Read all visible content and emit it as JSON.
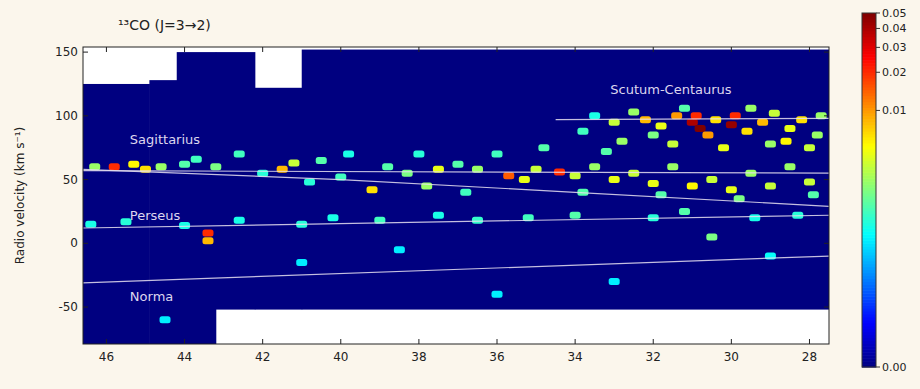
{
  "chart_data": {
    "type": "heatmap",
    "title": "¹³CO (J=3→2)",
    "y_label": "Radio velocity (km s⁻¹)",
    "xlim": [
      46.6,
      27.5
    ],
    "ylim": [
      -79,
      154
    ],
    "xticks": [
      46,
      44,
      42,
      40,
      38,
      36,
      34,
      32,
      30,
      28
    ],
    "yticks": [
      -50,
      0,
      50,
      100,
      150
    ],
    "coverage": [
      {
        "l": [
          46.6,
          44.9
        ],
        "v": [
          -79,
          125
        ]
      },
      {
        "l": [
          44.9,
          44.2
        ],
        "v": [
          -79,
          128
        ]
      },
      {
        "l": [
          44.2,
          43.2
        ],
        "v": [
          -79,
          150
        ]
      },
      {
        "l": [
          43.2,
          42.2
        ],
        "v": [
          -52,
          150
        ]
      },
      {
        "l": [
          42.2,
          41.0
        ],
        "v": [
          -52,
          122
        ]
      },
      {
        "l": [
          41.0,
          27.5
        ],
        "v": [
          -52,
          152
        ]
      }
    ],
    "cells": {
      "l": [
        33.5,
        33.0,
        32.5,
        32.2,
        31.8,
        31.4,
        31.0,
        30.8,
        30.9,
        30.6,
        30.4,
        30.0,
        29.9,
        29.6,
        29.2,
        28.9,
        28.5,
        28.2,
        27.8,
        32.8,
        31.5,
        30.2,
        29.0,
        28.0,
        31.2,
        29.5,
        33.8,
        32.0,
        28.6,
        27.7,
        46.3,
        45.8,
        45.3,
        45.0,
        44.6,
        44.0,
        43.7,
        43.2,
        42.6,
        41.5,
        41.2,
        40.5,
        39.8,
        39.2,
        38.8,
        38.3,
        37.8,
        37.5,
        37.0,
        36.5,
        35.7,
        35.3,
        35.0,
        34.4,
        34.0,
        33.5,
        33.0,
        32.5,
        32.0,
        31.5,
        31.0,
        30.5,
        30.0,
        29.5,
        29.0,
        28.5,
        28.0,
        40.0,
        42.0,
        36.0,
        34.8,
        33.2,
        38.0,
        40.8,
        36.8,
        33.8,
        31.8,
        29.8,
        27.9,
        46.4,
        45.5,
        44.0,
        43.4,
        43.4,
        42.6,
        41.0,
        40.2,
        39.0,
        37.5,
        36.5,
        35.2,
        34.0,
        32.0,
        31.2,
        30.5,
        29.4,
        28.3,
        38.5,
        33.0,
        36.0,
        41.0,
        29.0,
        44.5
      ],
      "v": [
        100,
        95,
        103,
        97,
        92,
        100,
        95,
        90,
        100,
        85,
        97,
        93,
        100,
        88,
        95,
        102,
        90,
        97,
        85,
        80,
        78,
        75,
        78,
        75,
        106,
        106,
        88,
        85,
        80,
        100,
        60,
        60,
        62,
        58,
        60,
        62,
        66,
        60,
        70,
        58,
        63,
        65,
        70,
        42,
        60,
        55,
        45,
        58,
        62,
        58,
        53,
        50,
        58,
        56,
        53,
        60,
        50,
        55,
        47,
        60,
        45,
        50,
        42,
        55,
        45,
        60,
        48,
        52,
        55,
        70,
        75,
        72,
        70,
        48,
        40,
        40,
        38,
        35,
        38,
        15,
        17,
        14,
        8,
        2,
        18,
        15,
        20,
        18,
        22,
        18,
        20,
        22,
        20,
        25,
        5,
        20,
        22,
        -5,
        -30,
        -40,
        -15,
        -10,
        -60
      ],
      "values": [
        0.0005,
        0.003,
        0.002,
        0.008,
        0.004,
        0.01,
        0.04,
        0.05,
        0.02,
        0.01,
        0.006,
        0.045,
        0.02,
        0.006,
        0.008,
        0.003,
        0.004,
        0.006,
        0.002,
        0.002,
        0.003,
        0.004,
        0.002,
        0.003,
        0.001,
        0.002,
        0.0008,
        0.0015,
        0.005,
        0.002,
        0.002,
        0.02,
        0.005,
        0.006,
        0.002,
        0.001,
        0.0008,
        0.0015,
        0.0008,
        0.008,
        0.003,
        0.001,
        0.0005,
        0.006,
        0.001,
        0.0015,
        0.002,
        0.004,
        0.001,
        0.002,
        0.015,
        0.004,
        0.003,
        0.02,
        0.003,
        0.002,
        0.004,
        0.003,
        0.004,
        0.002,
        0.005,
        0.003,
        0.004,
        0.002,
        0.003,
        0.002,
        0.003,
        0.0008,
        0.0006,
        0.0008,
        0.001,
        0.001,
        0.0006,
        0.0006,
        0.0008,
        0.001,
        0.001,
        0.0015,
        0.001,
        0.0005,
        0.0006,
        0.0005,
        0.02,
        0.008,
        0.0005,
        0.0006,
        0.0005,
        0.0008,
        0.0005,
        0.0007,
        0.0008,
        0.001,
        0.0006,
        0.001,
        0.0015,
        0.0005,
        0.0006,
        0.0003,
        0.0003,
        0.0003,
        0.0003,
        0.0004,
        0.0003
      ]
    },
    "colorbar": {
      "range": [
        0,
        0.05
      ],
      "ticks": [
        {
          "value": 0,
          "label": "0.00"
        },
        {
          "value": 0.01,
          "label": "0.01"
        },
        {
          "value": 0.02,
          "label": "0.02"
        },
        {
          "value": 0.03,
          "label": "0.03"
        },
        {
          "value": 0.04,
          "label": "0.04"
        },
        {
          "value": 0.05,
          "label": "0.05"
        }
      ]
    },
    "lines": [
      {
        "x": [
          46.6,
          27.5
        ],
        "y": [
          57,
          55
        ]
      },
      {
        "x": [
          46.6,
          40,
          34,
          27.5
        ],
        "y": [
          58,
          50,
          40,
          29
        ]
      },
      {
        "x": [
          46.6,
          27.5
        ],
        "y": [
          12,
          22
        ]
      },
      {
        "x": [
          46.6,
          27.5
        ],
        "y": [
          -31,
          -10
        ]
      },
      {
        "x": [
          34.5,
          27.5
        ],
        "y": [
          97,
          98
        ]
      }
    ],
    "annotations": [
      {
        "text": "Sagittarius",
        "x": 45.4,
        "y": 78
      },
      {
        "text": "Perseus",
        "x": 45.4,
        "y": 18
      },
      {
        "text": "Norma",
        "x": 45.4,
        "y": -45
      },
      {
        "text": "Scutum-Centaurus",
        "x": 33.1,
        "y": 117
      }
    ]
  }
}
